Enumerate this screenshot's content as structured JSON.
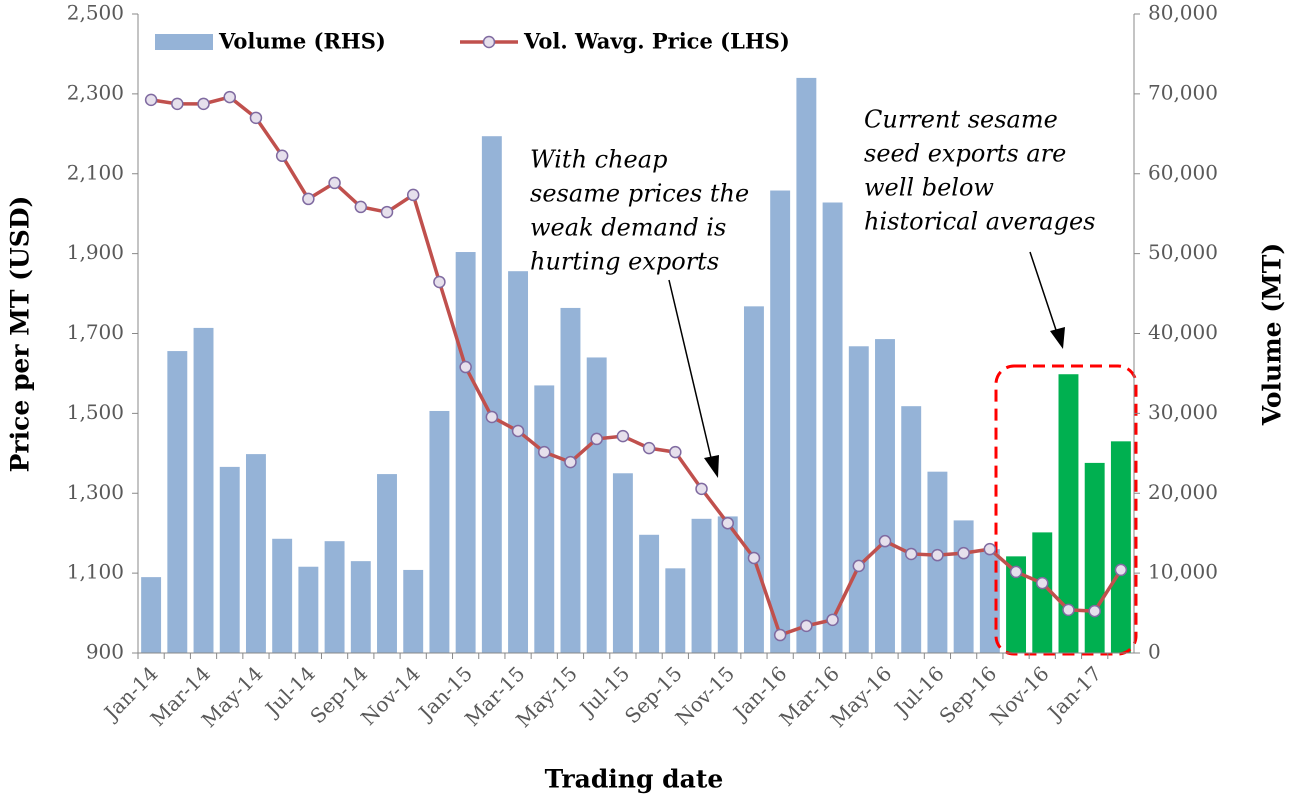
{
  "chart_data": {
    "type": "bar_line",
    "x_label": "Trading date",
    "y_label": "Price per MT (USD)",
    "y2_label": "Volume (MT)",
    "categories": [
      "Jan-14",
      null,
      "Mar-14",
      null,
      "May-14",
      null,
      "Jul-14",
      null,
      "Sep-14",
      null,
      "Nov-14",
      null,
      "Jan-15",
      null,
      "Mar-15",
      null,
      "May-15",
      null,
      "Jul-15",
      null,
      "Sep-15",
      null,
      "Nov-15",
      null,
      "Jan-16",
      null,
      "Mar-16",
      null,
      "May-16",
      null,
      "Jul-16",
      null,
      "Sep-16",
      null,
      "Nov-16",
      null,
      "Jan-17",
      null
    ],
    "series": [
      {
        "name": "Volume (RHS)",
        "type": "bar",
        "axis": "y2",
        "color": "#95b3d7",
        "colors": [
          "#95b3d7",
          "#95b3d7",
          "#95b3d7",
          "#95b3d7",
          "#95b3d7",
          "#95b3d7",
          "#95b3d7",
          "#95b3d7",
          "#95b3d7",
          "#95b3d7",
          "#95b3d7",
          "#95b3d7",
          "#95b3d7",
          "#95b3d7",
          "#95b3d7",
          "#95b3d7",
          "#95b3d7",
          "#95b3d7",
          "#95b3d7",
          "#95b3d7",
          "#95b3d7",
          "#95b3d7",
          "#95b3d7",
          "#95b3d7",
          "#95b3d7",
          "#95b3d7",
          "#95b3d7",
          "#95b3d7",
          "#95b3d7",
          "#95b3d7",
          "#95b3d7",
          "#95b3d7",
          "#95b3d7",
          "#00b050",
          "#00b050",
          "#00b050",
          "#00b050",
          "#00b050"
        ],
        "values": [
          9500,
          37800,
          40700,
          23300,
          24900,
          14300,
          10800,
          14000,
          11500,
          22400,
          10400,
          30300,
          50200,
          64700,
          47800,
          33500,
          43200,
          37000,
          22500,
          14800,
          10600,
          16800,
          17100,
          43400,
          57900,
          72000,
          56400,
          38400,
          39300,
          30900,
          22700,
          16600,
          13000,
          12100,
          15100,
          34900,
          23800,
          26500
        ]
      },
      {
        "name": "Vol. Wavg. Price (LHS)",
        "type": "line",
        "color": "#c0504d",
        "marker_fill": "#e6e0ec",
        "marker_stroke": "#7f6aa0",
        "values": [
          2285,
          2275,
          2275,
          2292,
          2240,
          2145,
          2037,
          2077,
          2017,
          2004,
          2047,
          1829,
          1616,
          1491,
          1456,
          1403,
          1378,
          1436,
          1443,
          1413,
          1403,
          1311,
          1225,
          1138,
          945,
          968,
          983,
          1118,
          1180,
          1148,
          1145,
          1150,
          1160,
          1103,
          1075,
          1008,
          1005,
          1108
        ]
      }
    ],
    "ylim": [
      900,
      2500
    ],
    "yticks": [
      900,
      {
        "value": 1100,
        "label": "1,100"
      },
      {
        "value": 1300,
        "label": "1,300"
      },
      {
        "value": 1500,
        "label": "1,500"
      },
      {
        "value": 1700,
        "label": "1,700"
      },
      {
        "value": 1900,
        "label": "1,900"
      },
      {
        "value": 2100,
        "label": "2,100"
      },
      {
        "value": 2300,
        "label": "2,300"
      },
      {
        "value": 2500,
        "label": "2,500"
      }
    ],
    "y2lim": [
      0,
      80000
    ],
    "y2ticks": [
      0,
      {
        "value": 10000,
        "label": "10,000"
      },
      {
        "value": 20000,
        "label": "20,000"
      },
      {
        "value": 30000,
        "label": "30,000"
      },
      {
        "value": 40000,
        "label": "40,000"
      },
      {
        "value": 50000,
        "label": "50,000"
      },
      {
        "value": 60000,
        "label": "60,000"
      },
      {
        "value": 70000,
        "label": "70,000"
      },
      {
        "value": 80000,
        "label": "80,000"
      }
    ],
    "legend": "top-left",
    "annotations": [
      {
        "lines": [
          "With cheap",
          "sesame prices the",
          "weak demand is",
          "hurting exports"
        ]
      },
      {
        "lines": [
          "Current sesame",
          "seed exports are",
          "well below",
          "historical averages"
        ]
      }
    ]
  }
}
